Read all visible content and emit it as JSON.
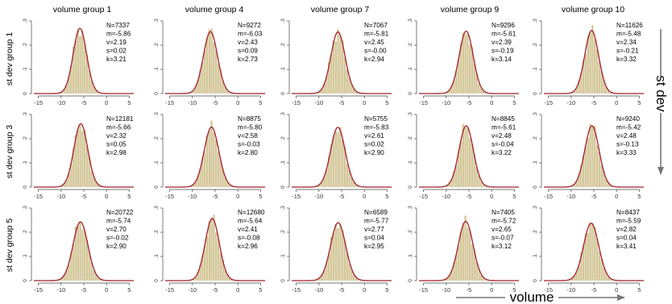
{
  "col_titles": [
    "volume group 1",
    "volume group 4",
    "volume group 7",
    "volume group 9",
    "volume group 10"
  ],
  "row_titles": [
    "st dev group 1",
    "st dev group 3",
    "st dev group 5"
  ],
  "x_axis_label": "volume",
  "right_axis_label": "st dev",
  "chart_data": {
    "type": "histogram-grid",
    "xlim": [
      -16,
      6
    ],
    "xticks": [
      "-15",
      "-10",
      "-5",
      "0",
      "5"
    ],
    "yticks": [
      "0",
      ".1",
      ".2",
      ".3"
    ],
    "ylim": [
      0,
      0.3
    ],
    "colors": {
      "bars": "#d4c79a",
      "curve": "#a0202c",
      "arrow": "#777777"
    },
    "stat_labels": [
      "N=",
      "m=",
      "v=",
      "s=",
      "k="
    ],
    "panels": [
      {
        "row": 0,
        "col": 0,
        "N": "7337",
        "m": "-5.86",
        "v": "2.19",
        "s": "0.02",
        "k": "3.21"
      },
      {
        "row": 0,
        "col": 1,
        "N": "9272",
        "m": "-6.03",
        "v": "2.43",
        "s": "0.09",
        "k": "2.73"
      },
      {
        "row": 0,
        "col": 2,
        "N": "7067",
        "m": "-5.81",
        "v": "2.45",
        "s": "-0.00",
        "k": "2.94"
      },
      {
        "row": 0,
        "col": 3,
        "N": "9296",
        "m": "-5.61",
        "v": "2.39",
        "s": "-0.19",
        "k": "3.14"
      },
      {
        "row": 0,
        "col": 4,
        "N": "11626",
        "m": "-5.48",
        "v": "2.34",
        "s": "-0.21",
        "k": "3.32"
      },
      {
        "row": 1,
        "col": 0,
        "N": "12181",
        "m": "-5.66",
        "v": "2.32",
        "s": "0.05",
        "k": "2.98"
      },
      {
        "row": 1,
        "col": 1,
        "N": "8875",
        "m": "-5.80",
        "v": "2.58",
        "s": "-0.03",
        "k": "2.80"
      },
      {
        "row": 1,
        "col": 2,
        "N": "5755",
        "m": "-5.83",
        "v": "2.61",
        "s": "0.02",
        "k": "2.90"
      },
      {
        "row": 1,
        "col": 3,
        "N": "8845",
        "m": "-5.61",
        "v": "2.48",
        "s": "-0.04",
        "k": "3.22"
      },
      {
        "row": 1,
        "col": 4,
        "N": "9240",
        "m": "-5.42",
        "v": "2.48",
        "s": "-0.13",
        "k": "3.33"
      },
      {
        "row": 2,
        "col": 0,
        "N": "20722",
        "m": "-5.74",
        "v": "2.70",
        "s": "-0.02",
        "k": "2.90"
      },
      {
        "row": 2,
        "col": 1,
        "N": "12680",
        "m": "-5.64",
        "v": "2.41",
        "s": "-0.08",
        "k": "2.96"
      },
      {
        "row": 2,
        "col": 2,
        "N": "6589",
        "m": "-5.77",
        "v": "2.77",
        "s": "0.04",
        "k": "2.95"
      },
      {
        "row": 2,
        "col": 3,
        "N": "7405",
        "m": "-5.72",
        "v": "2.65",
        "s": "-0.07",
        "k": "3.12"
      },
      {
        "row": 2,
        "col": 4,
        "N": "8437",
        "m": "-5.59",
        "v": "2.82",
        "s": "0.04",
        "k": "3.41"
      }
    ]
  }
}
